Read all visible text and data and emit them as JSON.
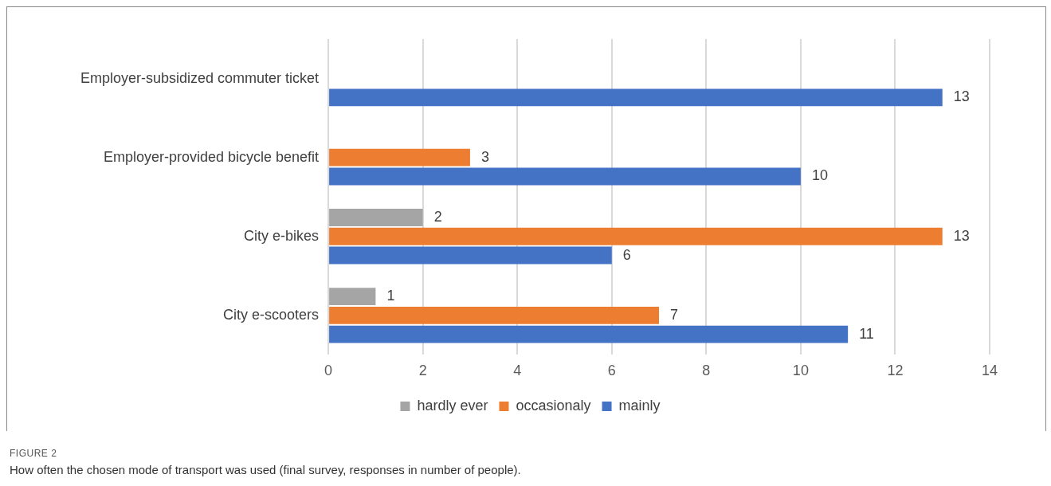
{
  "chart_data": {
    "type": "bar",
    "orientation": "horizontal",
    "categories": [
      "Employer-subsidized commuter ticket",
      "Employer-provided bicycle benefit",
      "City e-bikes",
      "City e-scooters"
    ],
    "series": [
      {
        "name": "hardly ever",
        "color": "#a5a5a5",
        "values": [
          null,
          null,
          2,
          1
        ]
      },
      {
        "name": "occasionaly",
        "color": "#ed7d31",
        "values": [
          null,
          3,
          13,
          7
        ]
      },
      {
        "name": "mainly",
        "color": "#4472c4",
        "values": [
          13,
          10,
          6,
          11
        ]
      }
    ],
    "xlim": [
      0,
      14
    ],
    "xticks": [
      0,
      2,
      4,
      6,
      8,
      10,
      12,
      14
    ],
    "grid": "x",
    "legend": "bottom",
    "data_labels": true,
    "annotations": [
      "FIGURE 2",
      "How often the chosen mode of transport was used (final survey, responses in number of people)."
    ]
  }
}
